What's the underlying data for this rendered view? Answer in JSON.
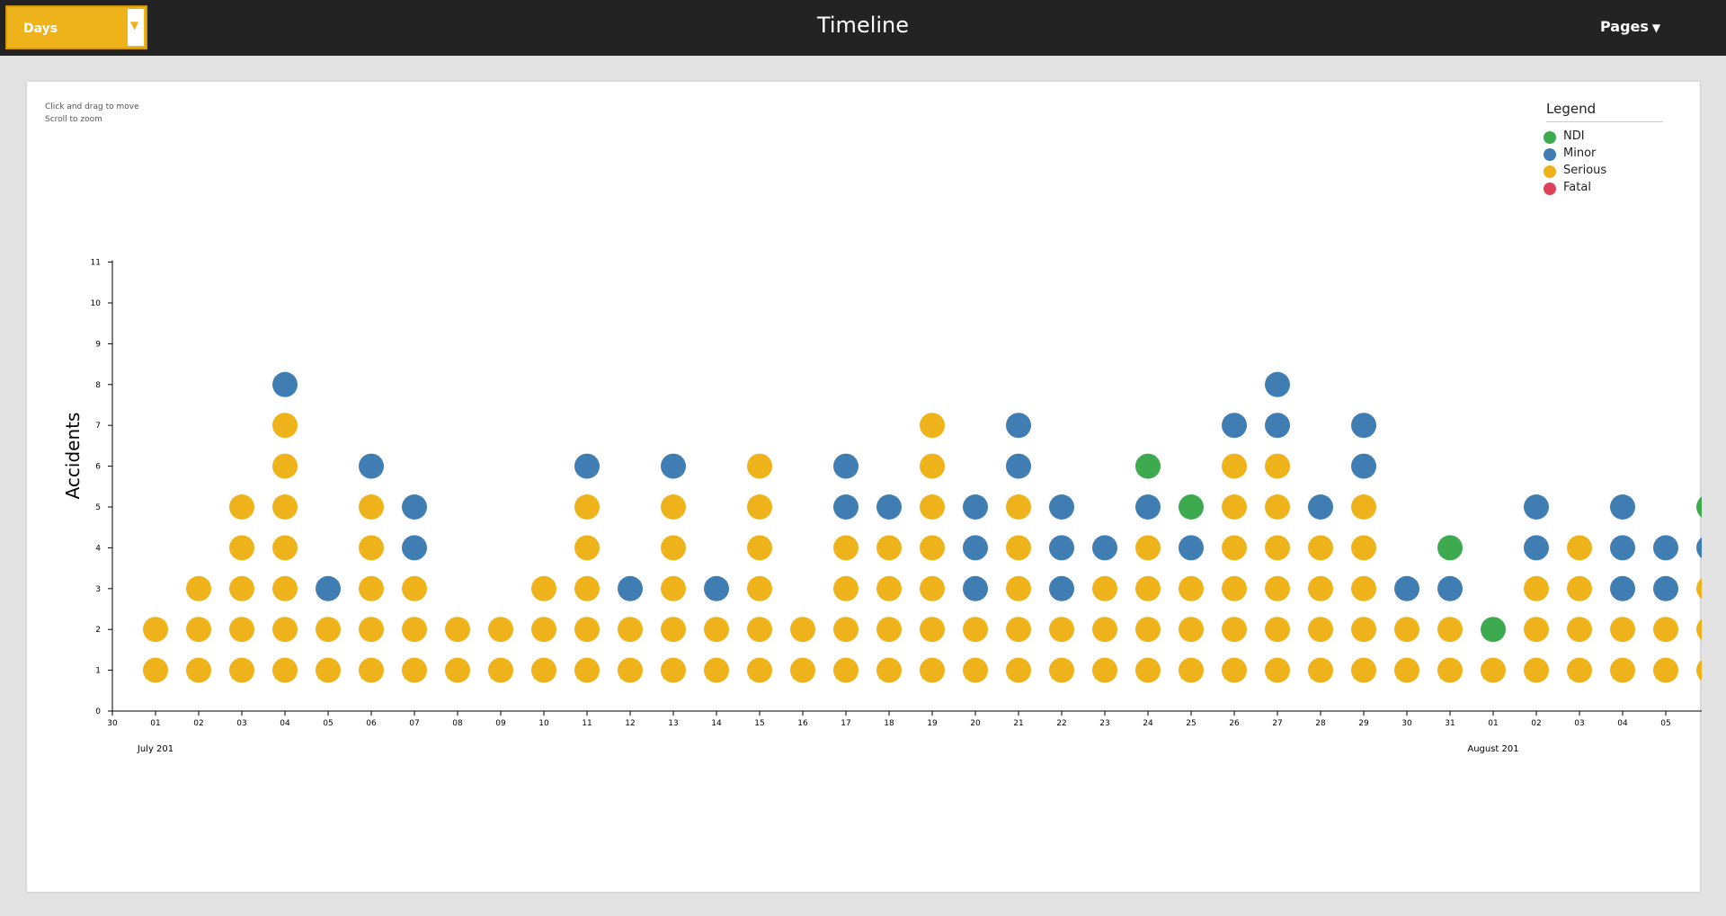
{
  "header": {
    "title": "Timeline",
    "view_select": "Days",
    "pages_menu": "Pages"
  },
  "hints": [
    "Click and drag to move",
    "Scroll to zoom"
  ],
  "legend": {
    "title": "Legend",
    "items": [
      {
        "label": "NDI",
        "color": "#3daa4f"
      },
      {
        "label": "Minor",
        "color": "#3f7db3"
      },
      {
        "label": "Serious",
        "color": "#eeb31a"
      },
      {
        "label": "Fatal",
        "color": "#e0415b"
      }
    ]
  },
  "colors": {
    "accent": "#eeb31a",
    "topbar": "#232323"
  },
  "icons": {
    "select_arrow": "triangle-down-icon",
    "pages_caret": "caret-down-icon"
  },
  "chart_data": {
    "type": "scatter",
    "title": "",
    "xlabel": "",
    "ylabel": "Accidents",
    "ylim": [
      0,
      11
    ],
    "yticks": [
      "0",
      "1",
      "2",
      "3",
      "4",
      "5",
      "6",
      "7",
      "8",
      "9",
      "10",
      "11"
    ],
    "x_ticks": [
      "30",
      "01",
      "02",
      "03",
      "04",
      "05",
      "06",
      "07",
      "08",
      "09",
      "10",
      "11",
      "12",
      "13",
      "14",
      "15",
      "16",
      "17",
      "18",
      "19",
      "20",
      "21",
      "22",
      "23",
      "24",
      "25",
      "26",
      "27",
      "28",
      "29",
      "30",
      "31",
      "01",
      "02",
      "03",
      "04",
      "05"
    ],
    "month_labels": [
      {
        "label": "July 201",
        "tick_index": 1
      },
      {
        "label": "August 201",
        "tick_index": 32
      }
    ],
    "columns": [
      [
        "Serious",
        "Serious"
      ],
      [
        "Serious",
        "Serious",
        "Serious"
      ],
      [
        "Serious",
        "Serious",
        "Serious",
        "Serious",
        "Serious"
      ],
      [
        "Serious",
        "Serious",
        "Serious",
        "Serious",
        "Serious",
        "Serious",
        "Serious",
        "Minor"
      ],
      [
        "Serious",
        "Serious",
        "Minor"
      ],
      [
        "Serious",
        "Serious",
        "Serious",
        "Serious",
        "Serious",
        "Minor"
      ],
      [
        "Serious",
        "Serious",
        "Serious",
        "Minor",
        "Minor"
      ],
      [
        "Serious",
        "Serious"
      ],
      [
        "Serious",
        "Serious"
      ],
      [
        "Serious",
        "Serious",
        "Serious"
      ],
      [
        "Serious",
        "Serious",
        "Serious",
        "Serious",
        "Serious",
        "Minor"
      ],
      [
        "Serious",
        "Serious",
        "Minor"
      ],
      [
        "Serious",
        "Serious",
        "Serious",
        "Serious",
        "Serious",
        "Minor"
      ],
      [
        "Serious",
        "Serious",
        "Minor"
      ],
      [
        "Serious",
        "Serious",
        "Serious",
        "Serious",
        "Serious",
        "Serious"
      ],
      [
        "Serious",
        "Serious"
      ],
      [
        "Serious",
        "Serious",
        "Serious",
        "Serious",
        "Minor",
        "Minor"
      ],
      [
        "Serious",
        "Serious",
        "Serious",
        "Serious",
        "Minor"
      ],
      [
        "Serious",
        "Serious",
        "Serious",
        "Serious",
        "Serious",
        "Serious",
        "Serious"
      ],
      [
        "Serious",
        "Serious",
        "Minor",
        "Minor",
        "Minor"
      ],
      [
        "Serious",
        "Serious",
        "Serious",
        "Serious",
        "Serious",
        "Minor",
        "Minor"
      ],
      [
        "Serious",
        "Serious",
        "Minor",
        "Minor",
        "Minor"
      ],
      [
        "Serious",
        "Serious",
        "Serious",
        "Minor"
      ],
      [
        "Serious",
        "Serious",
        "Serious",
        "Serious",
        "Minor",
        "NDI"
      ],
      [
        "Serious",
        "Serious",
        "Serious",
        "Minor",
        "NDI"
      ],
      [
        "Serious",
        "Serious",
        "Serious",
        "Serious",
        "Serious",
        "Serious",
        "Minor"
      ],
      [
        "Serious",
        "Serious",
        "Serious",
        "Serious",
        "Serious",
        "Serious",
        "Minor",
        "Minor"
      ],
      [
        "Serious",
        "Serious",
        "Serious",
        "Serious",
        "Minor"
      ],
      [
        "Serious",
        "Serious",
        "Serious",
        "Serious",
        "Serious",
        "Minor",
        "Minor"
      ],
      [
        "Serious",
        "Serious",
        "Minor"
      ],
      [
        "Serious",
        "Serious",
        "Minor",
        "NDI"
      ],
      [
        "Serious",
        "NDI"
      ],
      [
        "Serious",
        "Serious",
        "Serious",
        "Minor",
        "Minor"
      ],
      [
        "Serious",
        "Serious",
        "Serious",
        "Serious"
      ],
      [
        "Serious",
        "Serious",
        "Minor",
        "Minor",
        "Minor"
      ],
      [
        "Serious",
        "Serious",
        "Minor",
        "Minor"
      ],
      [
        "Serious",
        "Serious",
        "Serious",
        "Minor",
        "NDI"
      ]
    ],
    "grid": false,
    "legend_position": "top-right"
  }
}
